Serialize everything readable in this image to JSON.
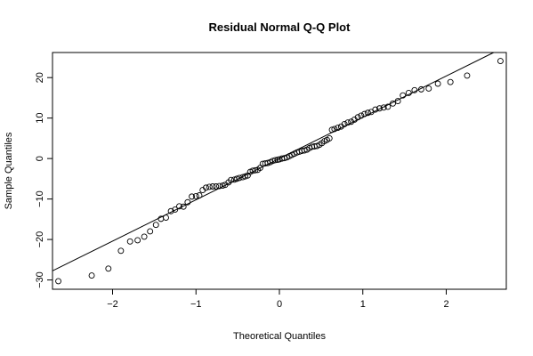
{
  "chart_data": {
    "type": "scatter",
    "title": "Residual Normal Q-Q Plot",
    "xlabel": "Theoretical Quantiles",
    "ylabel": "Sample Quantiles",
    "xlim": [
      -2.72,
      2.72
    ],
    "ylim": [
      -32.3,
      26.2
    ],
    "x_ticks": [
      -2,
      -1,
      0,
      1,
      2
    ],
    "y_ticks": [
      -30,
      -20,
      -10,
      0,
      10,
      20
    ],
    "x_tick_labels": [
      "−2",
      "−1",
      "0",
      "1",
      "2"
    ],
    "y_tick_labels": [
      "−30",
      "−20",
      "−10",
      "0",
      "10",
      "20"
    ],
    "grid": false,
    "reference_line": {
      "intercept": 0,
      "slope": 10.2
    },
    "points": [
      [
        -2.65,
        -30.3
      ],
      [
        -2.25,
        -28.9
      ],
      [
        -2.05,
        -27.2
      ],
      [
        -1.9,
        -22.8
      ],
      [
        -1.79,
        -20.5
      ],
      [
        -1.7,
        -20.2
      ],
      [
        -1.62,
        -19.3
      ],
      [
        -1.55,
        -18.0
      ],
      [
        -1.48,
        -16.4
      ],
      [
        -1.42,
        -14.9
      ],
      [
        -1.36,
        -14.6
      ],
      [
        -1.3,
        -13.0
      ],
      [
        -1.25,
        -12.6
      ],
      [
        -1.2,
        -11.8
      ],
      [
        -1.15,
        -11.9
      ],
      [
        -1.1,
        -10.8
      ],
      [
        -1.05,
        -9.4
      ],
      [
        -1.0,
        -9.3
      ],
      [
        -0.96,
        -9.1
      ],
      [
        -0.92,
        -7.8
      ],
      [
        -0.88,
        -7.2
      ],
      [
        -0.84,
        -7.0
      ],
      [
        -0.8,
        -6.9
      ],
      [
        -0.76,
        -6.9
      ],
      [
        -0.72,
        -6.8
      ],
      [
        -0.68,
        -6.7
      ],
      [
        -0.65,
        -6.5
      ],
      [
        -0.61,
        -5.9
      ],
      [
        -0.58,
        -5.3
      ],
      [
        -0.54,
        -5.2
      ],
      [
        -0.51,
        -5.0
      ],
      [
        -0.48,
        -4.8
      ],
      [
        -0.44,
        -4.6
      ],
      [
        -0.41,
        -4.4
      ],
      [
        -0.38,
        -4.2
      ],
      [
        -0.35,
        -3.3
      ],
      [
        -0.32,
        -3.0
      ],
      [
        -0.29,
        -2.9
      ],
      [
        -0.26,
        -2.8
      ],
      [
        -0.23,
        -2.3
      ],
      [
        -0.2,
        -1.3
      ],
      [
        -0.17,
        -1.2
      ],
      [
        -0.14,
        -1.1
      ],
      [
        -0.11,
        -0.9
      ],
      [
        -0.08,
        -0.6
      ],
      [
        -0.05,
        -0.4
      ],
      [
        -0.02,
        -0.3
      ],
      [
        0.0,
        -0.2
      ],
      [
        0.03,
        0.0
      ],
      [
        0.06,
        0.1
      ],
      [
        0.09,
        0.3
      ],
      [
        0.12,
        0.6
      ],
      [
        0.15,
        0.9
      ],
      [
        0.18,
        1.2
      ],
      [
        0.21,
        1.5
      ],
      [
        0.24,
        1.7
      ],
      [
        0.27,
        1.9
      ],
      [
        0.3,
        2.0
      ],
      [
        0.33,
        2.2
      ],
      [
        0.36,
        2.6
      ],
      [
        0.39,
        2.9
      ],
      [
        0.42,
        3.0
      ],
      [
        0.45,
        3.1
      ],
      [
        0.48,
        3.4
      ],
      [
        0.51,
        3.8
      ],
      [
        0.54,
        4.3
      ],
      [
        0.57,
        4.6
      ],
      [
        0.6,
        5.0
      ],
      [
        0.63,
        7.1
      ],
      [
        0.66,
        7.3
      ],
      [
        0.7,
        7.6
      ],
      [
        0.74,
        7.9
      ],
      [
        0.78,
        8.5
      ],
      [
        0.82,
        8.9
      ],
      [
        0.86,
        9.1
      ],
      [
        0.9,
        9.6
      ],
      [
        0.94,
        10.2
      ],
      [
        0.98,
        10.6
      ],
      [
        1.02,
        11.0
      ],
      [
        1.06,
        11.3
      ],
      [
        1.1,
        11.5
      ],
      [
        1.15,
        12.1
      ],
      [
        1.2,
        12.4
      ],
      [
        1.25,
        12.6
      ],
      [
        1.3,
        12.8
      ],
      [
        1.36,
        13.6
      ],
      [
        1.42,
        14.2
      ],
      [
        1.48,
        15.6
      ],
      [
        1.55,
        16.2
      ],
      [
        1.62,
        16.9
      ],
      [
        1.7,
        17.1
      ],
      [
        1.79,
        17.3
      ],
      [
        1.9,
        18.5
      ],
      [
        2.05,
        18.9
      ],
      [
        2.25,
        20.5
      ],
      [
        2.65,
        24.1
      ]
    ]
  }
}
